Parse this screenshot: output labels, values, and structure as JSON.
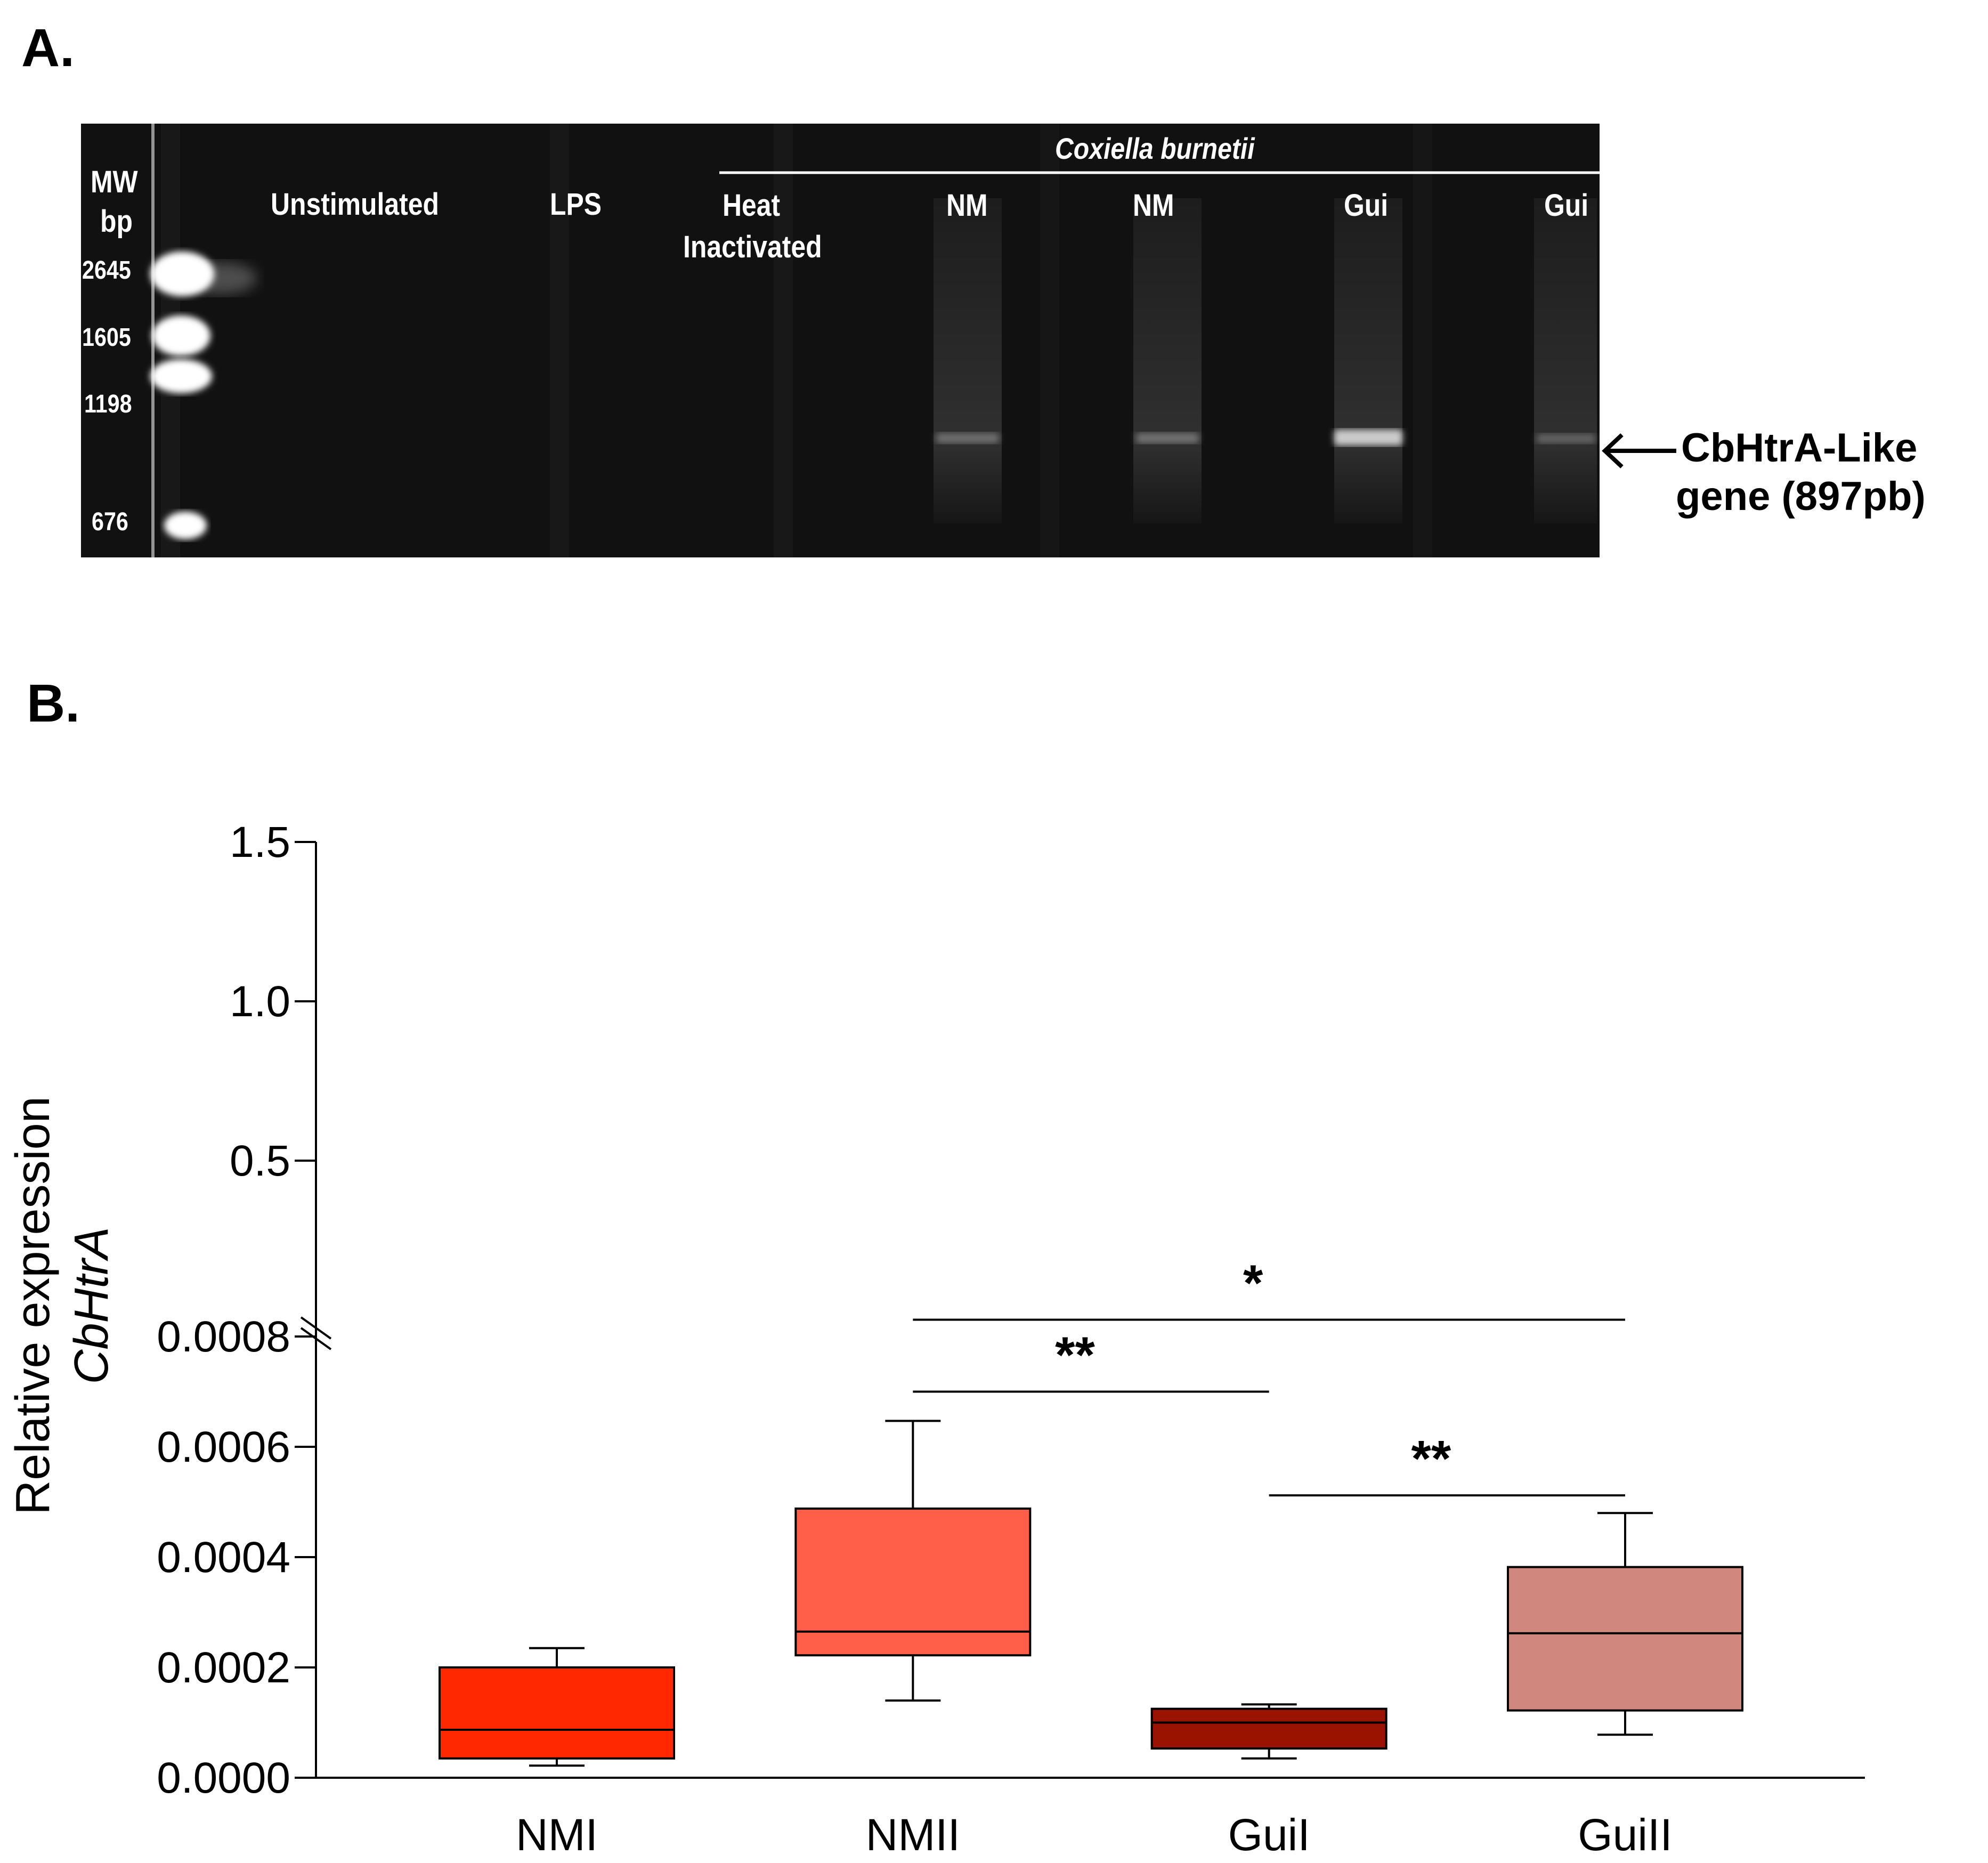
{
  "panel_a": {
    "letter": "A.",
    "mw_header_1": "MW",
    "mw_header_2": "bp",
    "mw_markers": [
      "2645",
      "1605",
      "1198",
      "676"
    ],
    "group_title": "Coxiella burnetii",
    "lanes": {
      "unstimulated": "Unstimulated",
      "lps": "LPS",
      "heat_1": "Heat",
      "heat_2": "Inactivated",
      "nm_1": "NM",
      "nm_2": "NM",
      "gui_1": "Gui",
      "gui_2": "Gui"
    },
    "band_label_1": "CbHtrA-Like",
    "band_label_2": "gene (897pb)",
    "colors": {
      "gel_background": "#111111",
      "text": "#ffffff"
    }
  },
  "panel_b": {
    "letter": "B."
  },
  "chart_data": {
    "type": "box",
    "ylabel_line1": "Relative expression",
    "ylabel_line2": "CbHtrA",
    "y_axis": {
      "broken": true,
      "lower_range": [
        0,
        0.0008
      ],
      "upper_range": [
        0.0008,
        1.5
      ],
      "lower_ticks": [
        {
          "value": 0.0,
          "label": "0.0000"
        },
        {
          "value": 0.0002,
          "label": "0.0002"
        },
        {
          "value": 0.0004,
          "label": "0.0004"
        },
        {
          "value": 0.0006,
          "label": "0.0006"
        },
        {
          "value": 0.0008,
          "label": "0.0008"
        }
      ],
      "upper_ticks": [
        {
          "value": 0.5,
          "label": "0.5"
        },
        {
          "value": 1.0,
          "label": "1.0"
        },
        {
          "value": 1.5,
          "label": "1.5"
        }
      ]
    },
    "categories": [
      "NMI",
      "NMII",
      "GuiI",
      "GuiII"
    ],
    "boxes": [
      {
        "name": "NMI",
        "min": 2.2e-05,
        "q1": 3.5e-05,
        "median": 8.7e-05,
        "q3": 0.0002,
        "max": 0.000235,
        "color": "#ff2800"
      },
      {
        "name": "NMII",
        "min": 0.00014,
        "q1": 0.000222,
        "median": 0.000265,
        "q3": 0.000488,
        "max": 0.000647,
        "color": "#ff5e48"
      },
      {
        "name": "GuiI",
        "min": 3.5e-05,
        "q1": 5.3e-05,
        "median": 0.0001,
        "q3": 0.000125,
        "max": 0.000133,
        "color": "#9a1200"
      },
      {
        "name": "GuiII",
        "min": 7.8e-05,
        "q1": 0.000122,
        "median": 0.000262,
        "q3": 0.000382,
        "max": 0.00048,
        "color": "#d0877d"
      }
    ],
    "significance": [
      {
        "from": "NMII",
        "to": "GuiII",
        "label": "*",
        "y": 0.00085
      },
      {
        "from": "NMII",
        "to": "GuiI",
        "label": "**",
        "y": 0.0007
      },
      {
        "from": "GuiI",
        "to": "GuiII",
        "label": "**",
        "y": 0.000512
      }
    ]
  }
}
